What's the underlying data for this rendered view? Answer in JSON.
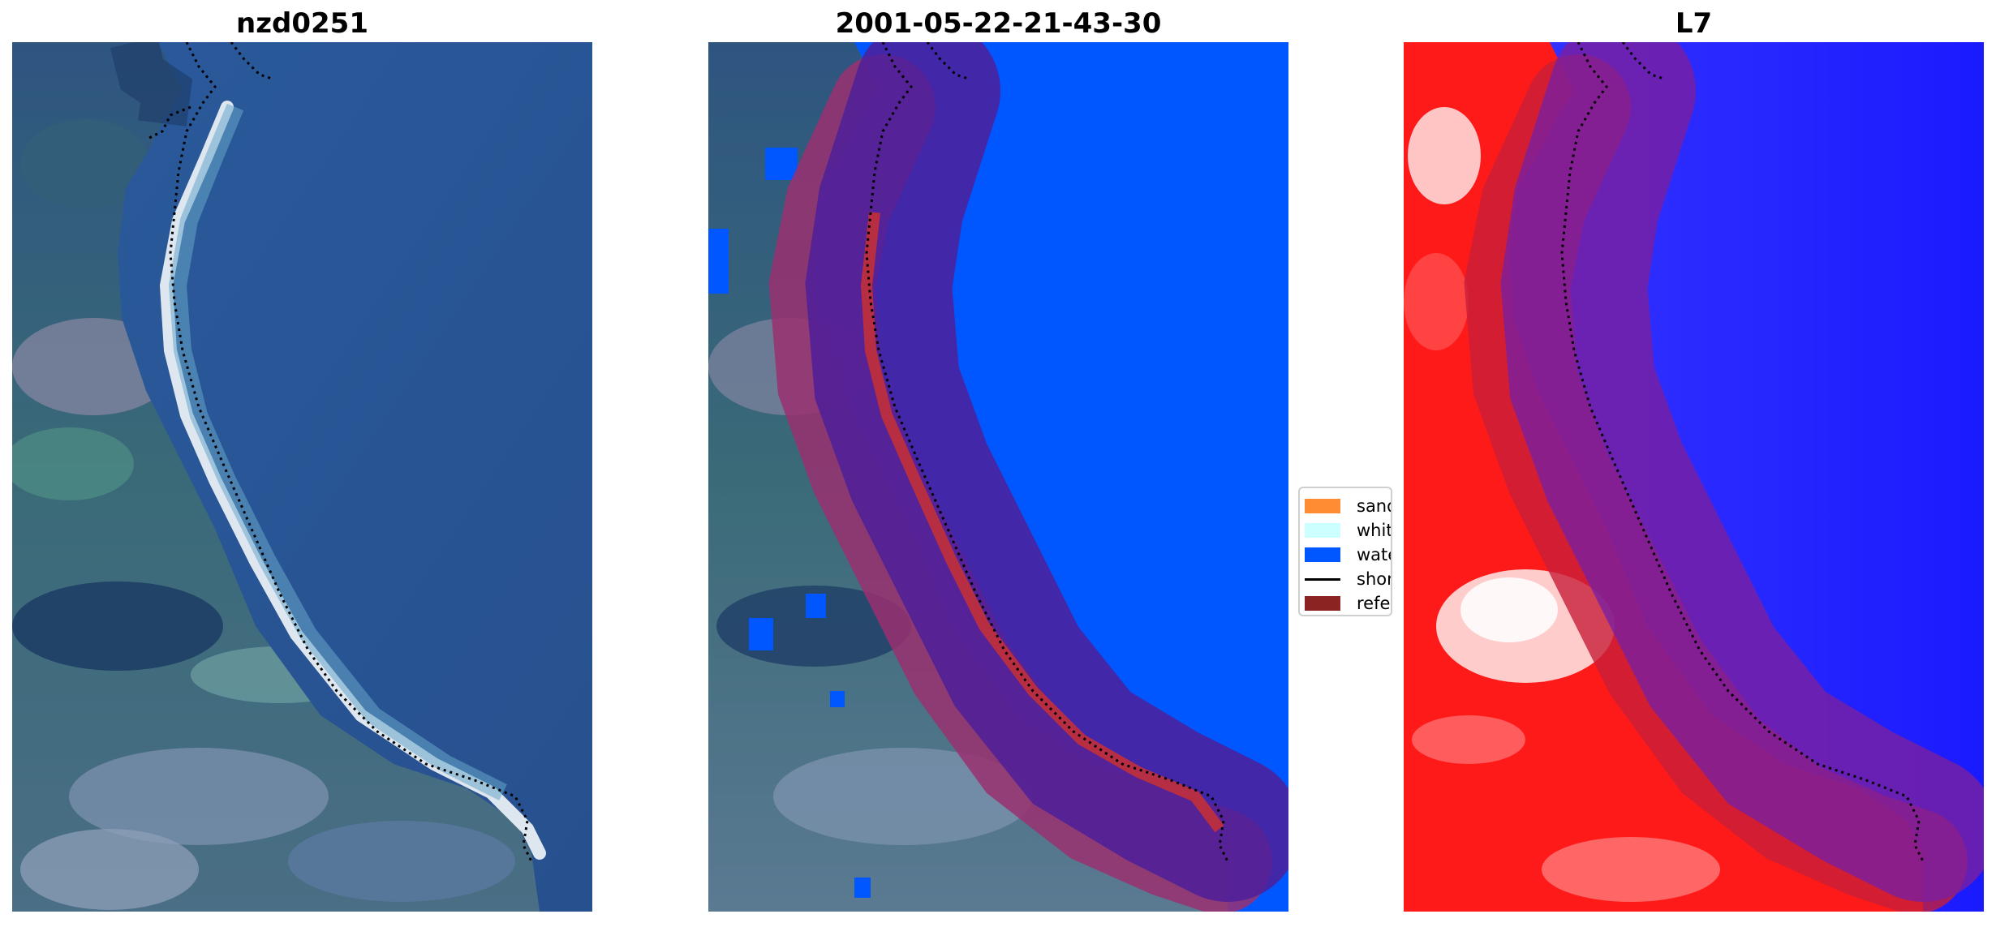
{
  "panels": {
    "rgb": {
      "title": "nzd0251"
    },
    "classified": {
      "title": "2001-05-22-21-43-30"
    },
    "index": {
      "title": "L7"
    }
  },
  "legend": {
    "items": [
      {
        "label": "sand",
        "color": "#ff8c33",
        "kind": "patch"
      },
      {
        "label": "whitewater",
        "color": "#ccffff",
        "kind": "patch"
      },
      {
        "label": "water",
        "color": "#0057ff",
        "kind": "patch"
      },
      {
        "label": "shoreline",
        "color": "#000000",
        "kind": "line"
      },
      {
        "label": "reference shoreline buffer",
        "color": "#8b2323",
        "kind": "patch"
      }
    ]
  },
  "colors": {
    "water_class": "#0057ff",
    "buffer": "#8b2323",
    "shoreline": "#000000",
    "index_land": "#ff1a1a",
    "index_water": "#1a1aff"
  }
}
